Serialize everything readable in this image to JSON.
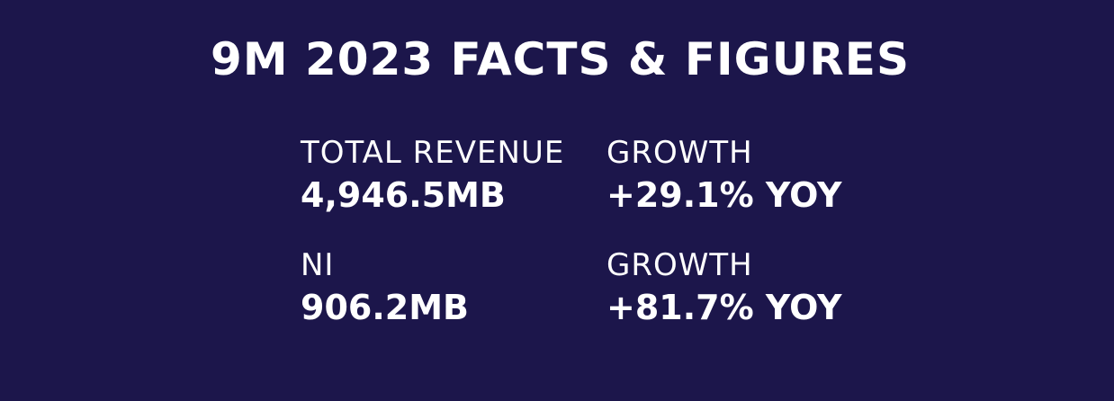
{
  "title": "9M 2023 FACTS & FIGURES",
  "metrics": [
    {
      "label": "TOTAL REVENUE",
      "value": "4,946.5MB"
    },
    {
      "label": "GROWTH",
      "value": "+29.1% YOY"
    },
    {
      "label": "NI",
      "value": "906.2MB"
    },
    {
      "label": "GROWTH",
      "value": "+81.7% YOY"
    }
  ],
  "colors": {
    "background": "#1c164b",
    "text": "#ffffff"
  }
}
